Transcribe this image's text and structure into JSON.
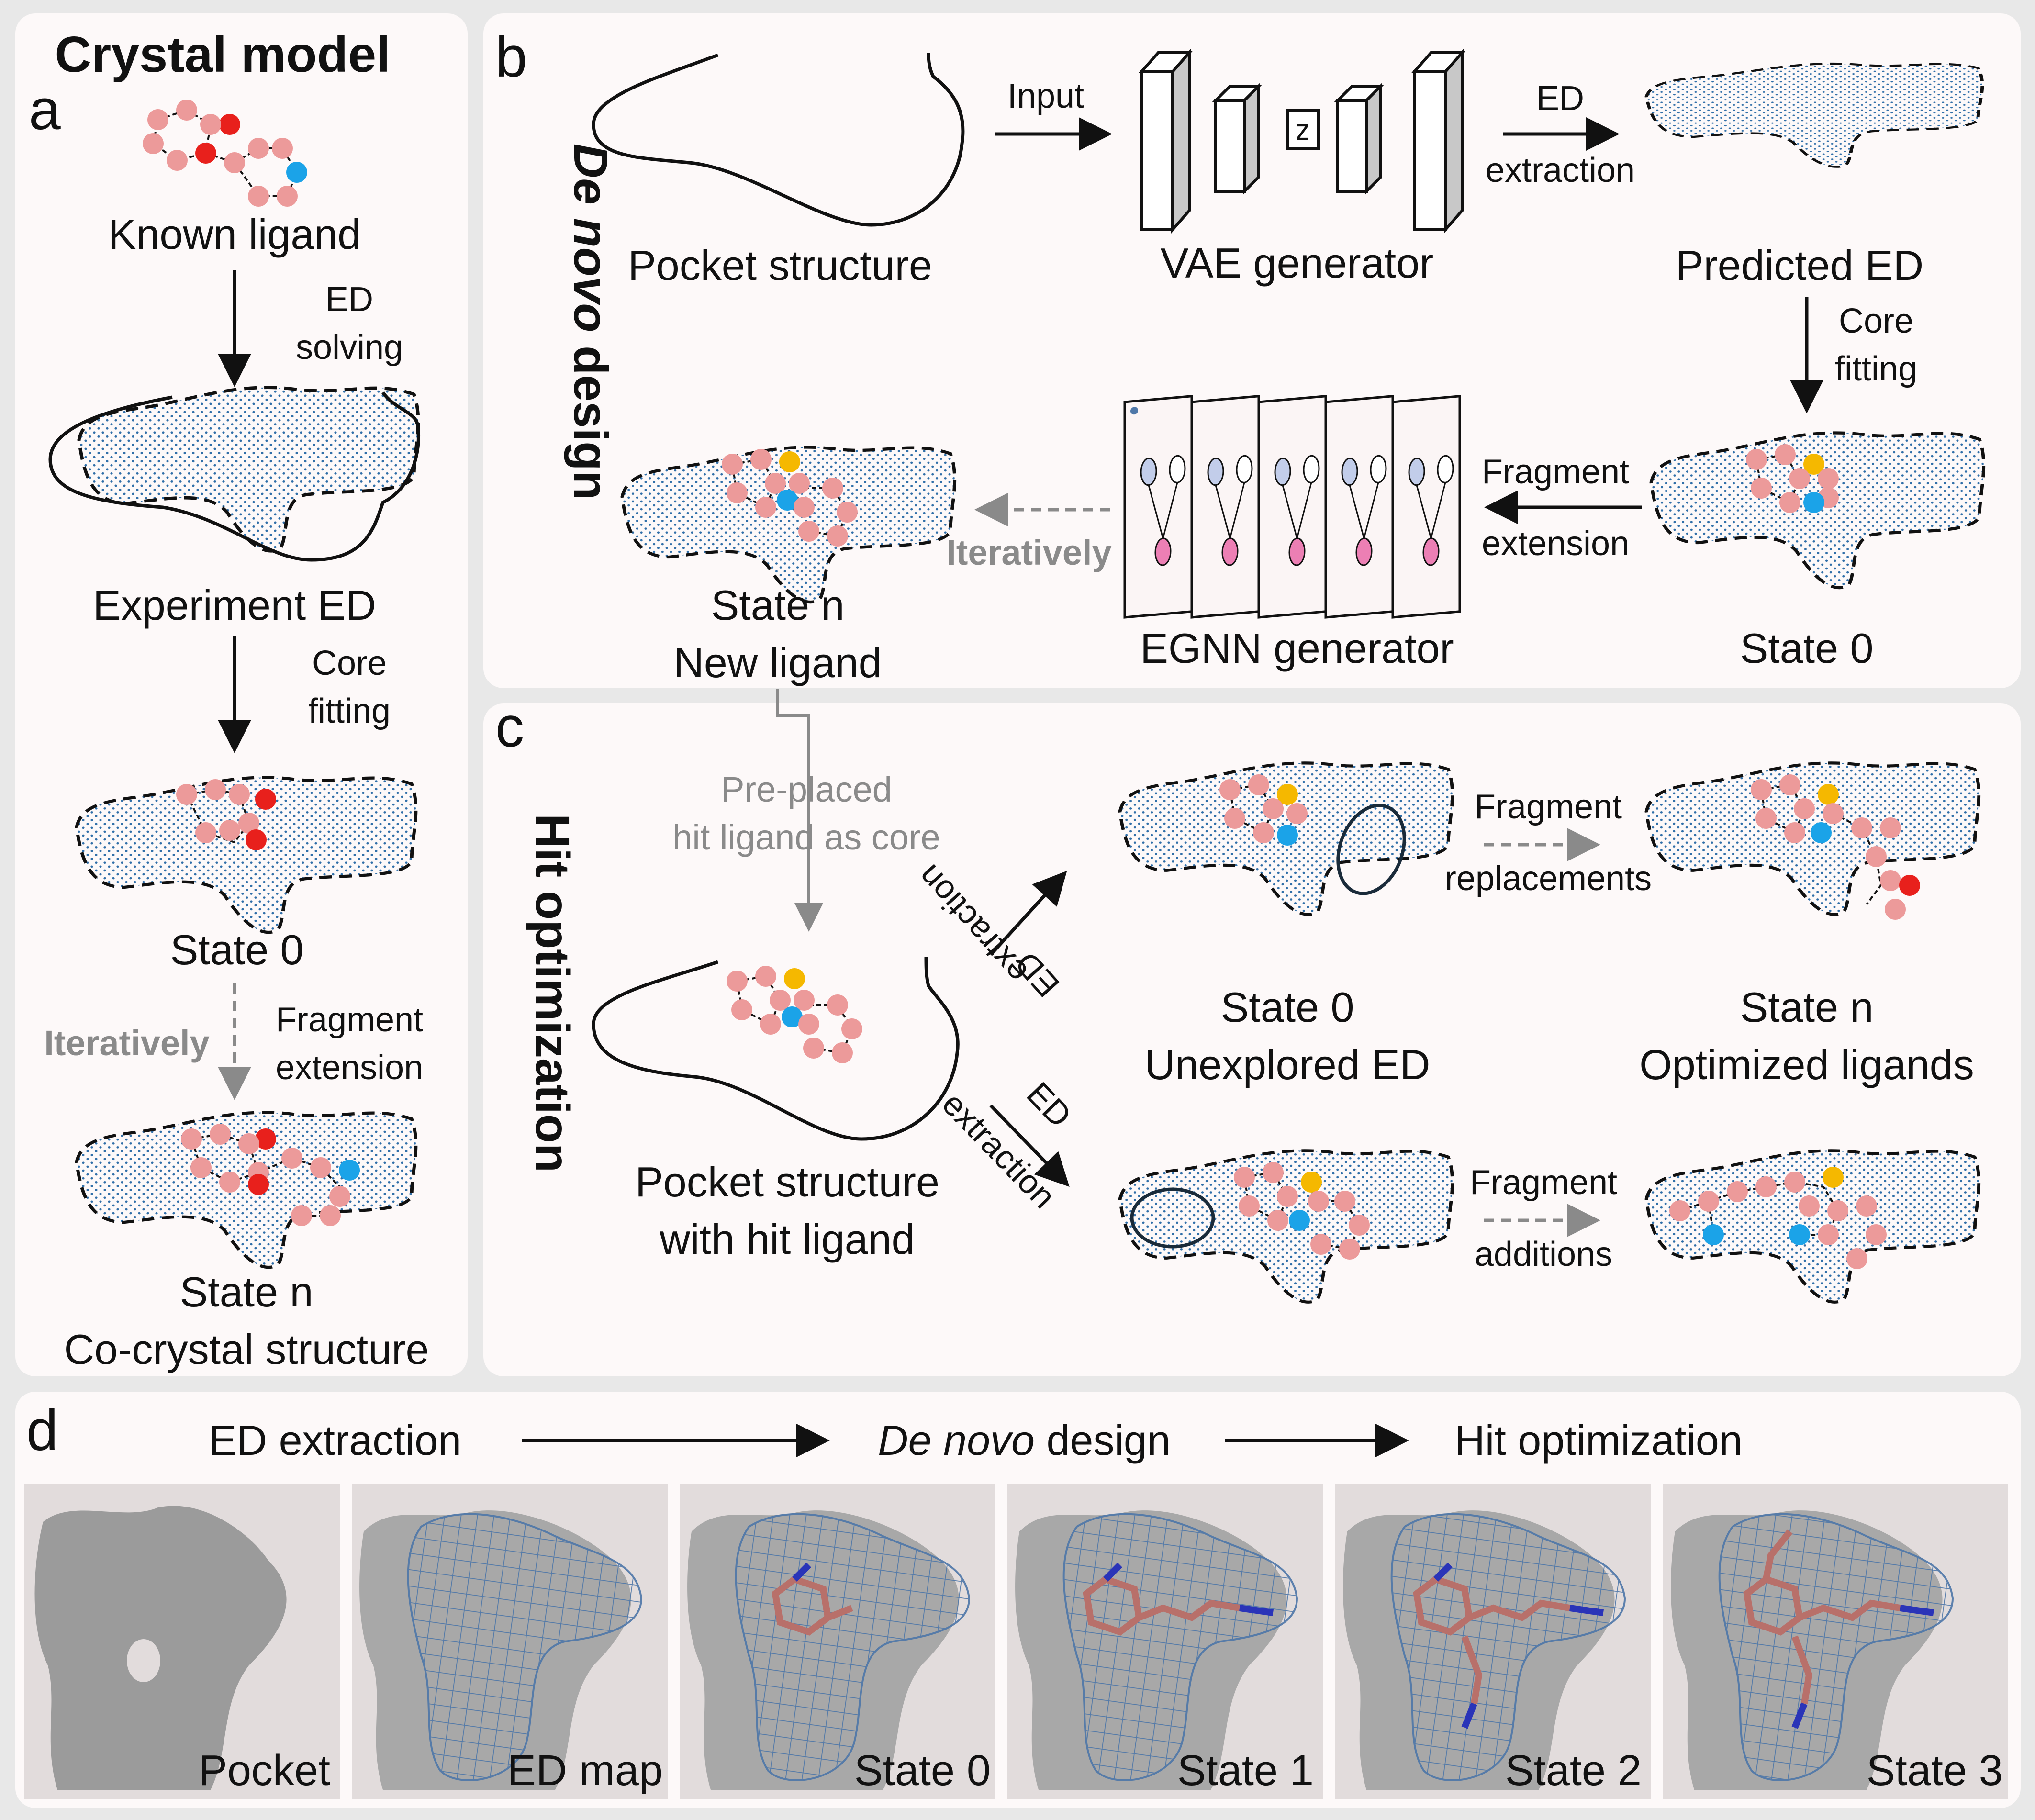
{
  "panel_a": {
    "title": "Crystal model",
    "letter": "a",
    "known_ligand": "Known ligand",
    "ed_solving_1": "ED",
    "ed_solving_2": "solving",
    "experiment_ed": "Experiment ED",
    "core_fitting_1": "Core",
    "core_fitting_2": "fitting",
    "state0": "State 0",
    "iteratively": "Iteratively",
    "frag_ext_1": "Fragment",
    "frag_ext_2": "extension",
    "staten": "State n",
    "cocrystal": "Co-crystal structure"
  },
  "panel_b": {
    "letter": "b",
    "side_title_1": "De novo",
    "side_title_2": " design",
    "pocket_structure": "Pocket structure",
    "input": "Input",
    "vae": "VAE generator",
    "z": "z",
    "ed_extraction_1": "ED",
    "ed_extraction_2": "extraction",
    "predicted_ed": "Predicted ED",
    "core_fitting_1": "Core",
    "core_fitting_2": "fitting",
    "fragment_ext_1": "Fragment",
    "fragment_ext_2": "extension",
    "iteratively": "Iteratively",
    "egnn": "EGNN generator",
    "state0": "State 0",
    "staten": "State n",
    "new_ligand": "New ligand"
  },
  "panel_c": {
    "letter": "c",
    "side_title": "Hit optimization",
    "preplaced_1": "Pre-placed",
    "preplaced_2": "hit ligand as core",
    "pocket_hit_1": "Pocket structure",
    "pocket_hit_2": "with hit ligand",
    "ed_up_1": "ED",
    "ed_up_2": "extraction",
    "ed_down_1": "ED",
    "ed_down_2": "extraction",
    "frag_repl_1": "Fragment",
    "frag_repl_2": "replacements",
    "frag_add_1": "Fragment",
    "frag_add_2": "additions",
    "state0": "State 0",
    "unexplored": "Unexplored ED",
    "staten": "State n",
    "optimized": "Optimized ligands"
  },
  "panel_d": {
    "letter": "d",
    "step1": "ED extraction",
    "step2_italic": "De novo",
    "step2_rest": " design",
    "step3": "Hit optimization",
    "tiles": [
      "Pocket",
      "ED map",
      "State 0",
      "State 1",
      "State 2",
      "State 3"
    ]
  },
  "colors": {
    "atom_pink": "#ec9a9a",
    "atom_red": "#e8201c",
    "atom_blue": "#1ba3e8",
    "atom_yellow": "#f5b800",
    "ed_dots": "#2f6ea8",
    "panel_bg": "#fdf9f9",
    "page_bg": "#e8e8e8",
    "mesh": "#4e77a8"
  }
}
